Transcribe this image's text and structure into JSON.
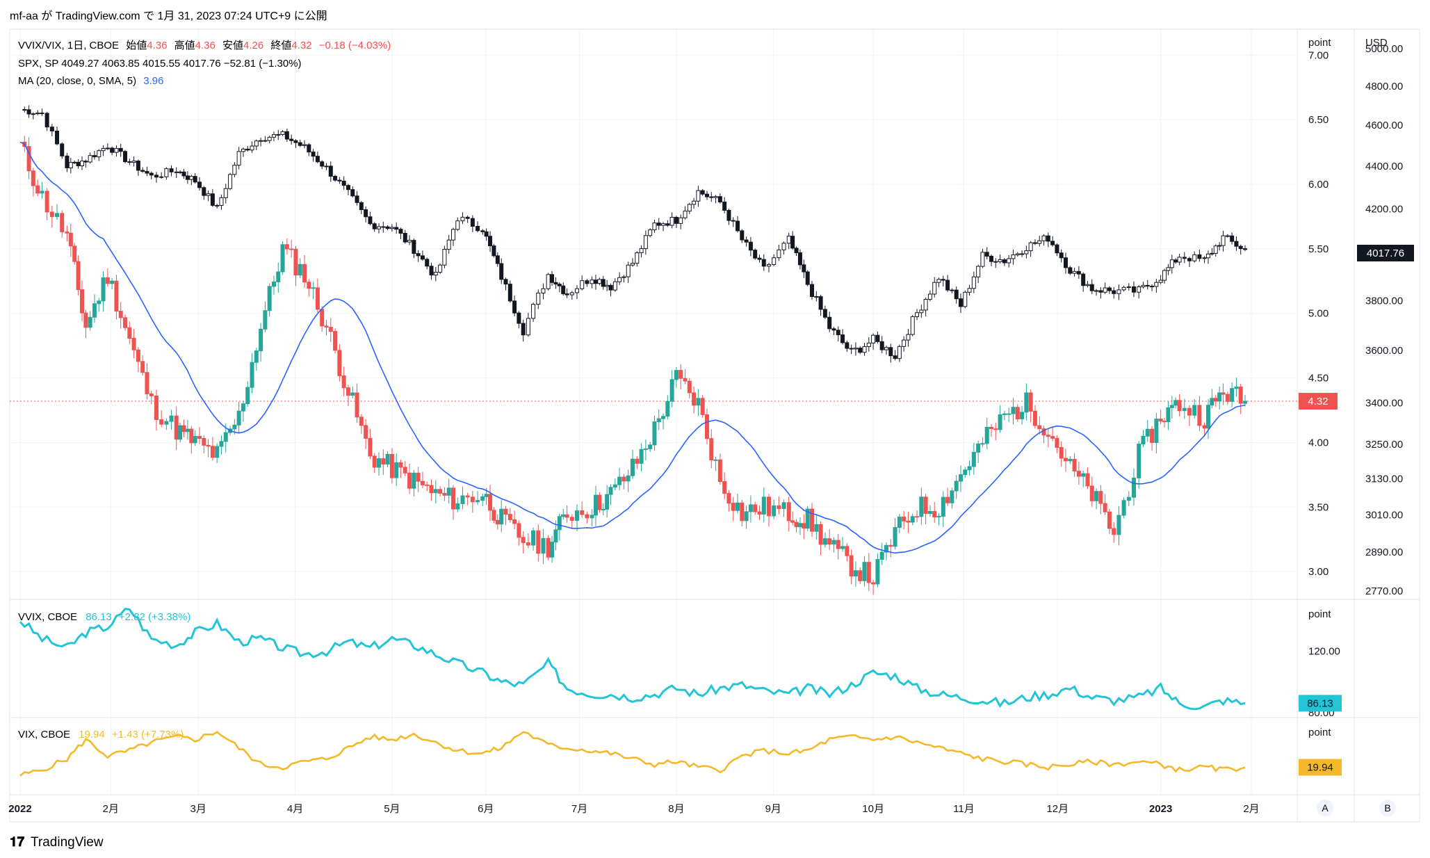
{
  "header": {
    "attribution": "mf-aa が TradingView.com で 1月 31, 2023 07:24 UTC+9 に公開"
  },
  "footer": {
    "brand": "TradingView"
  },
  "legend": {
    "ratio": {
      "prefix": "VVIX/VIX, 1日, CBOE",
      "open_label": "始値",
      "open": "4.36",
      "high_label": "高値",
      "high": "4.36",
      "low_label": "安値",
      "low": "4.26",
      "close_label": "終値",
      "close": "4.32",
      "change": "−0.18 (−4.03%)"
    },
    "spx": {
      "text": "SPX, SP  4049.27  4063.85  4015.55  4017.76  −52.81 (−1.30%)"
    },
    "ma": {
      "label": "MA (20, close, 0, SMA, 5)",
      "value": "3.96"
    },
    "vvix": {
      "label": "VVIX, CBOE",
      "value": "86.13",
      "change": "+2.82 (+3.38%)"
    },
    "vix": {
      "label": "VIX, CBOE",
      "value": "19.94",
      "change": "+1.43 (+7.73%)"
    }
  },
  "axes": {
    "left_unit": "point",
    "right_unit": "USD",
    "ratio_ticks": [
      "7.00",
      "6.50",
      "6.00",
      "5.50",
      "5.00",
      "4.50",
      "4.00",
      "3.50",
      "3.00"
    ],
    "usd_ticks": [
      "5000.00",
      "4800.00",
      "4600.00",
      "4400.00",
      "4200.00",
      "3800.00",
      "3600.00",
      "3400.00",
      "3250.00",
      "3130.00",
      "3010.00",
      "2890.00",
      "2770.00"
    ],
    "vvix_unit": "point",
    "vvix_ticks": [
      "120.00",
      "80.00"
    ],
    "vix_unit": "point",
    "months": [
      "2022",
      "2月",
      "3月",
      "4月",
      "5月",
      "6月",
      "7月",
      "8月",
      "9月",
      "10月",
      "11月",
      "12月",
      "2023",
      "2月"
    ],
    "buttons": [
      "A",
      "B"
    ]
  },
  "badges": {
    "spx_last": "4017.76",
    "ratio_last": "4.32",
    "vvix_last": "86.13",
    "vix_last": "19.94"
  },
  "colors": {
    "up": "#26a69a",
    "down": "#ef5350",
    "spx": "#131722",
    "ma": "#2962ff",
    "vvix": "#22c4d6",
    "vix": "#f5b82a",
    "price_line": "#ef5350"
  },
  "chart_data": [
    {
      "type": "candlestick",
      "name": "VVIX/VIX",
      "series_note": "approximate daily closes (weekly resolution, read from chart)",
      "x": [
        "2022-01-03",
        "2022-01-10",
        "2022-01-18",
        "2022-01-24",
        "2022-01-31",
        "2022-02-07",
        "2022-02-14",
        "2022-02-22",
        "2022-02-28",
        "2022-03-07",
        "2022-03-14",
        "2022-03-21",
        "2022-03-28",
        "2022-04-04",
        "2022-04-11",
        "2022-04-18",
        "2022-04-25",
        "2022-05-02",
        "2022-05-09",
        "2022-05-16",
        "2022-05-23",
        "2022-05-31",
        "2022-06-06",
        "2022-06-13",
        "2022-06-21",
        "2022-06-27",
        "2022-07-05",
        "2022-07-11",
        "2022-07-18",
        "2022-07-25",
        "2022-08-01",
        "2022-08-08",
        "2022-08-15",
        "2022-08-22",
        "2022-08-29",
        "2022-09-06",
        "2022-09-12",
        "2022-09-19",
        "2022-09-26",
        "2022-10-03",
        "2022-10-10",
        "2022-10-17",
        "2022-10-24",
        "2022-10-31",
        "2022-11-07",
        "2022-11-14",
        "2022-11-21",
        "2022-11-28",
        "2022-12-05",
        "2022-12-12",
        "2022-12-19",
        "2022-12-27",
        "2023-01-03",
        "2023-01-09",
        "2023-01-17",
        "2023-01-23",
        "2023-01-30"
      ],
      "values": [
        6.3,
        5.9,
        5.6,
        4.9,
        5.3,
        4.8,
        4.3,
        4.1,
        4.0,
        3.9,
        4.2,
        4.9,
        5.5,
        5.3,
        4.9,
        4.4,
        3.9,
        3.8,
        3.7,
        3.6,
        3.55,
        3.6,
        3.4,
        3.25,
        3.2,
        3.45,
        3.5,
        3.6,
        3.8,
        4.1,
        4.5,
        4.3,
        3.7,
        3.45,
        3.5,
        3.45,
        3.4,
        3.2,
        3.05,
        2.95,
        3.3,
        3.5,
        3.5,
        3.75,
        4.0,
        4.2,
        4.3,
        4.1,
        3.8,
        3.6,
        3.3,
        3.9,
        4.2,
        4.3,
        4.2,
        4.4,
        4.32
      ],
      "ma": {
        "period": 20,
        "last": 3.96
      },
      "ylim": [
        2.85,
        7.05
      ]
    },
    {
      "type": "candlestick",
      "name": "SPX",
      "x": [
        "2022-01-03",
        "2022-01-10",
        "2022-01-18",
        "2022-01-24",
        "2022-01-31",
        "2022-02-07",
        "2022-02-14",
        "2022-02-22",
        "2022-02-28",
        "2022-03-07",
        "2022-03-14",
        "2022-03-21",
        "2022-03-28",
        "2022-04-04",
        "2022-04-11",
        "2022-04-18",
        "2022-04-25",
        "2022-05-02",
        "2022-05-09",
        "2022-05-16",
        "2022-05-23",
        "2022-05-31",
        "2022-06-06",
        "2022-06-13",
        "2022-06-21",
        "2022-06-27",
        "2022-07-05",
        "2022-07-11",
        "2022-07-18",
        "2022-07-25",
        "2022-08-01",
        "2022-08-08",
        "2022-08-15",
        "2022-08-22",
        "2022-08-29",
        "2022-09-06",
        "2022-09-12",
        "2022-09-19",
        "2022-09-26",
        "2022-10-03",
        "2022-10-10",
        "2022-10-17",
        "2022-10-24",
        "2022-10-31",
        "2022-11-07",
        "2022-11-14",
        "2022-11-21",
        "2022-11-28",
        "2022-12-05",
        "2022-12-12",
        "2022-12-19",
        "2022-12-27",
        "2023-01-03",
        "2023-01-09",
        "2023-01-17",
        "2023-01-23",
        "2023-01-30"
      ],
      "values": [
        4680,
        4660,
        4400,
        4430,
        4500,
        4420,
        4350,
        4380,
        4330,
        4200,
        4460,
        4540,
        4550,
        4490,
        4390,
        4270,
        4130,
        4120,
        4020,
        3900,
        4160,
        4110,
        3900,
        3680,
        3910,
        3830,
        3900,
        3860,
        3960,
        4130,
        4150,
        4280,
        4230,
        4060,
        3930,
        4060,
        3870,
        3690,
        3590,
        3640,
        3580,
        3750,
        3900,
        3780,
        3990,
        3970,
        4030,
        4070,
        3930,
        3850,
        3840,
        3840,
        3900,
        3990,
        3970,
        4070,
        4017.76
      ],
      "last": 4017.76,
      "ylim": [
        2770,
        5000
      ],
      "scale": "log"
    },
    {
      "type": "line",
      "name": "VVIX",
      "x": [
        "2022-01-03",
        "2022-01-10",
        "2022-01-18",
        "2022-01-24",
        "2022-01-31",
        "2022-02-07",
        "2022-02-14",
        "2022-02-22",
        "2022-02-28",
        "2022-03-07",
        "2022-03-14",
        "2022-03-21",
        "2022-03-28",
        "2022-04-04",
        "2022-04-11",
        "2022-04-18",
        "2022-04-25",
        "2022-05-02",
        "2022-05-09",
        "2022-05-16",
        "2022-05-23",
        "2022-05-31",
        "2022-06-06",
        "2022-06-13",
        "2022-06-21",
        "2022-06-27",
        "2022-07-05",
        "2022-07-11",
        "2022-07-18",
        "2022-07-25",
        "2022-08-01",
        "2022-08-08",
        "2022-08-15",
        "2022-08-22",
        "2022-08-29",
        "2022-09-06",
        "2022-09-12",
        "2022-09-19",
        "2022-09-26",
        "2022-10-03",
        "2022-10-10",
        "2022-10-17",
        "2022-10-24",
        "2022-10-31",
        "2022-11-07",
        "2022-11-14",
        "2022-11-21",
        "2022-11-28",
        "2022-12-05",
        "2022-12-12",
        "2022-12-19",
        "2022-12-27",
        "2023-01-03",
        "2023-01-09",
        "2023-01-17",
        "2023-01-23",
        "2023-01-30"
      ],
      "values": [
        140,
        128,
        122,
        132,
        136,
        148,
        128,
        124,
        132,
        138,
        126,
        128,
        122,
        118,
        120,
        126,
        122,
        128,
        124,
        118,
        112,
        106,
        100,
        98,
        112,
        96,
        92,
        92,
        90,
        92,
        96,
        92,
        96,
        98,
        94,
        92,
        96,
        92,
        98,
        106,
        104,
        96,
        92,
        90,
        88,
        86,
        90,
        92,
        96,
        90,
        88,
        90,
        96,
        86,
        84,
        88,
        86.13
      ],
      "last": 86.13,
      "ylim": [
        80,
        150
      ]
    },
    {
      "type": "line",
      "name": "VIX",
      "x": [
        "2022-01-03",
        "2022-01-10",
        "2022-01-18",
        "2022-01-24",
        "2022-01-31",
        "2022-02-07",
        "2022-02-14",
        "2022-02-22",
        "2022-02-28",
        "2022-03-07",
        "2022-03-14",
        "2022-03-21",
        "2022-03-28",
        "2022-04-04",
        "2022-04-11",
        "2022-04-18",
        "2022-04-25",
        "2022-05-02",
        "2022-05-09",
        "2022-05-16",
        "2022-05-23",
        "2022-05-31",
        "2022-06-06",
        "2022-06-13",
        "2022-06-21",
        "2022-06-27",
        "2022-07-05",
        "2022-07-11",
        "2022-07-18",
        "2022-07-25",
        "2022-08-01",
        "2022-08-08",
        "2022-08-15",
        "2022-08-22",
        "2022-08-29",
        "2022-09-06",
        "2022-09-12",
        "2022-09-19",
        "2022-09-26",
        "2022-10-03",
        "2022-10-10",
        "2022-10-17",
        "2022-10-24",
        "2022-10-31",
        "2022-11-07",
        "2022-11-14",
        "2022-11-21",
        "2022-11-28",
        "2022-12-05",
        "2022-12-12",
        "2022-12-19",
        "2022-12-27",
        "2023-01-03",
        "2023-01-09",
        "2023-01-17",
        "2023-01-23",
        "2023-01-30"
      ],
      "values": [
        17,
        19,
        23,
        30,
        24,
        26,
        29,
        31,
        30,
        33,
        27,
        21,
        20,
        22,
        23,
        27,
        31,
        30,
        32,
        29,
        26,
        25,
        27,
        33,
        28,
        27,
        26,
        25,
        23,
        21,
        22,
        20,
        19,
        24,
        26,
        25,
        26,
        30,
        31,
        30,
        31,
        29,
        27,
        25,
        23,
        22,
        21,
        20,
        21,
        22,
        21,
        22,
        21,
        19,
        20,
        19,
        19.94
      ],
      "last": 19.94,
      "ylim": [
        12,
        36
      ]
    }
  ]
}
